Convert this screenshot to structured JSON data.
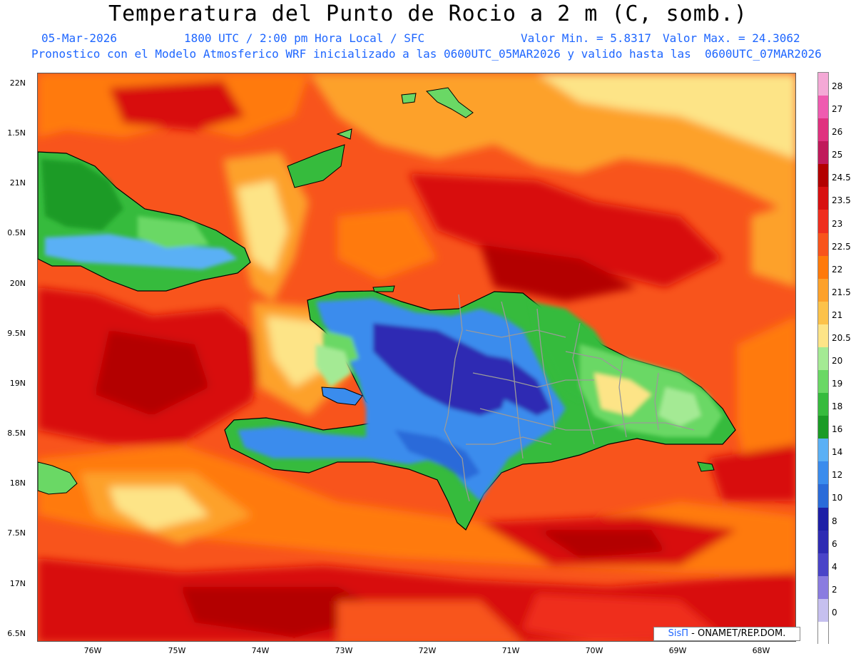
{
  "header": {
    "title": "Temperatura del Punto de Rocio a 2 m (C, somb.)",
    "date": "05-Mar-2026",
    "time": "1800 UTC / 2:00 pm Hora Local / SFC",
    "min_value": "Valor Min. = 5.8317",
    "max_value": "Valor Max. = 24.3062",
    "forecast": "Pronostico con el Modelo Atmosferico WRF inicializado a las 0600UTC_05MAR2026 y valido hasta las  0600UTC_07MAR2026"
  },
  "axes": {
    "lat_labels": [
      "22N",
      "1.5N",
      "21N",
      "0.5N",
      "20N",
      "9.5N",
      "19N",
      "8.5N",
      "18N",
      "7.5N",
      "17N",
      "6.5N"
    ],
    "lon_labels": [
      "76W",
      "75W",
      "74W",
      "73W",
      "72W",
      "71W",
      "70W",
      "69W",
      "68W"
    ]
  },
  "colorbar": {
    "labels": [
      "28",
      "27",
      "26",
      "25",
      "24.5",
      "23.5",
      "23",
      "22.5",
      "22",
      "21.5",
      "21",
      "20.5",
      "20",
      "19",
      "18",
      "16",
      "14",
      "12",
      "10",
      "8",
      "6",
      "4",
      "2",
      "0"
    ],
    "colors": [
      "#f4a9d6",
      "#ef5bb0",
      "#e0317f",
      "#c0195a",
      "#b30000",
      "#d81010",
      "#ef2e1e",
      "#f8541c",
      "#ff7a0a",
      "#fda12a",
      "#fcc24a",
      "#fde487",
      "#a4ea94",
      "#6ad865",
      "#36bb3d",
      "#1a9b26",
      "#5ab0f5",
      "#3a8ced",
      "#2a6bd9",
      "#1d1fa6",
      "#2e2bb3",
      "#4a44c8",
      "#8a7ce0",
      "#c6c0ef",
      "#ffffff"
    ]
  },
  "credit": {
    "logo": "SisΠ",
    "text": " - ONAMET/REP.DOM."
  },
  "map_colors": {
    "ocean_base": "#f8541c",
    "hot": "#d81010",
    "warm": "#ff7a0a",
    "mild": "#fda12a",
    "pale": "#fde487",
    "land_green": "#36bb3d",
    "land_light": "#6ad865",
    "land_blue": "#3a8ced",
    "land_deep": "#2e2bb3"
  }
}
